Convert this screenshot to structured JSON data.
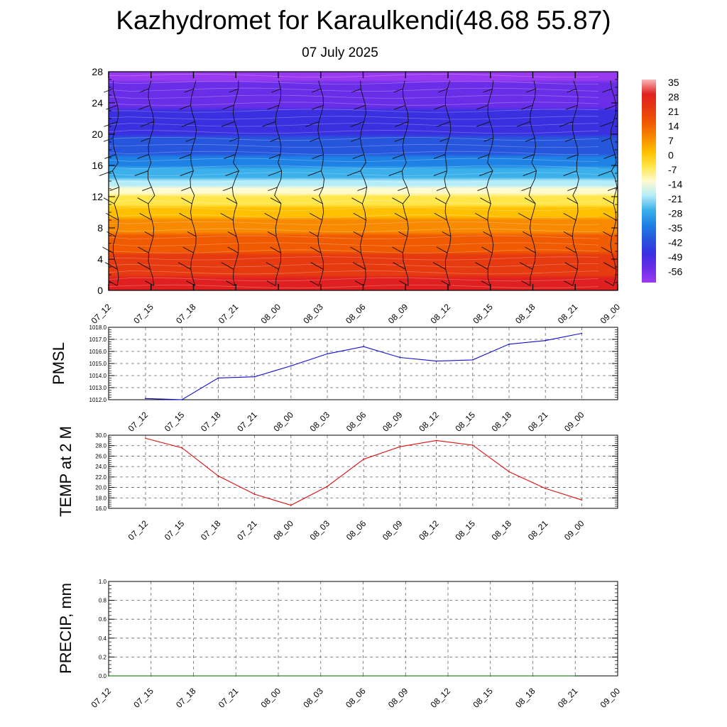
{
  "title": "Kazhydromet for Karaulkendi(48.68 55.87)",
  "subtitle": "07 July 2025",
  "colors": {
    "pmsl_line": "#1010d0",
    "temp_line": "#e01010",
    "precip_line": "#006400",
    "grid": "#666666"
  },
  "chart_data": [
    {
      "type": "heatmap",
      "title": "",
      "x_tick_labels": [
        "07_12",
        "07_15",
        "07_18",
        "07_21",
        "08_00",
        "08_03",
        "08_06",
        "08_09",
        "08_12",
        "08_15",
        "08_18",
        "08_21",
        "09_00"
      ],
      "y_ticks": [
        0,
        4,
        8,
        12,
        16,
        20,
        24,
        28
      ],
      "ylim": [
        0,
        28
      ],
      "colorbar_labels": [
        "35",
        "28",
        "21",
        "14",
        "7",
        "0",
        "-7",
        "-14",
        "-21",
        "-28",
        "-35",
        "-42",
        "-49",
        "-56"
      ],
      "colorbar_colors": [
        "#f8b8b8",
        "#e02020",
        "#e63a10",
        "#f05a00",
        "#f88a00",
        "#ffc000",
        "#ffe64a",
        "#fffbd0",
        "#b4ecf8",
        "#3cb0ea",
        "#1e82e4",
        "#2656dc",
        "#3a30e0",
        "#6a2ee8",
        "#9a3af0"
      ],
      "temperature_profile": {
        "levels": [
          0,
          2,
          4,
          6,
          8,
          10,
          12,
          13,
          14,
          16,
          18,
          20,
          22,
          24,
          26,
          28
        ],
        "values": [
          30,
          27,
          22,
          16,
          10,
          3,
          -7,
          -14,
          -22,
          -32,
          -41,
          -45,
          -50,
          -53,
          -58,
          -62
        ]
      },
      "wind_barbs": "present",
      "grid": false
    },
    {
      "type": "line",
      "ylabel": "PMSL",
      "x_tick_labels": [
        "07_12",
        "07_15",
        "07_18",
        "07_21",
        "08_00",
        "08_03",
        "08_06",
        "08_09",
        "08_12",
        "08_15",
        "08_18",
        "08_21",
        "09_00"
      ],
      "y_tick_labels": [
        "1012.0",
        "1013.0",
        "1014.0",
        "1015.0",
        "1016.0",
        "1017.0",
        "1018.0"
      ],
      "ylim": [
        1012.0,
        1018.0
      ],
      "values": [
        1012.1,
        1012.0,
        1013.8,
        1013.9,
        1014.8,
        1015.8,
        1016.4,
        1015.5,
        1015.2,
        1015.3,
        1016.6,
        1016.9,
        1017.5
      ],
      "grid": true
    },
    {
      "type": "line",
      "ylabel": "TEMP at 2 M",
      "x_tick_labels": [
        "07_12",
        "07_15",
        "07_18",
        "07_21",
        "08_00",
        "08_03",
        "08_06",
        "08_09",
        "08_12",
        "08_15",
        "08_18",
        "08_21",
        "09_00"
      ],
      "y_tick_labels": [
        "16.0",
        "18.0",
        "20.0",
        "22.0",
        "24.0",
        "26.0",
        "28.0",
        "30.0"
      ],
      "ylim": [
        16.0,
        30.0
      ],
      "values": [
        29.4,
        27.6,
        22.2,
        18.7,
        16.6,
        20.2,
        25.4,
        27.8,
        29.0,
        28.1,
        23.0,
        19.8,
        17.6
      ],
      "grid": true
    },
    {
      "type": "line",
      "ylabel": "PRECIP, mm",
      "x_tick_labels": [
        "07_12",
        "07_15",
        "07_18",
        "07_21",
        "08_00",
        "08_03",
        "08_06",
        "08_09",
        "08_12",
        "08_15",
        "08_18",
        "08_21",
        "09_00"
      ],
      "y_tick_labels": [
        "0.0",
        "0.2",
        "0.4",
        "0.6",
        "0.8",
        "1.0"
      ],
      "ylim": [
        0.0,
        1.0
      ],
      "values": [
        0,
        0,
        0,
        0,
        0,
        0,
        0,
        0,
        0,
        0,
        0,
        0
      ],
      "grid": true
    }
  ]
}
